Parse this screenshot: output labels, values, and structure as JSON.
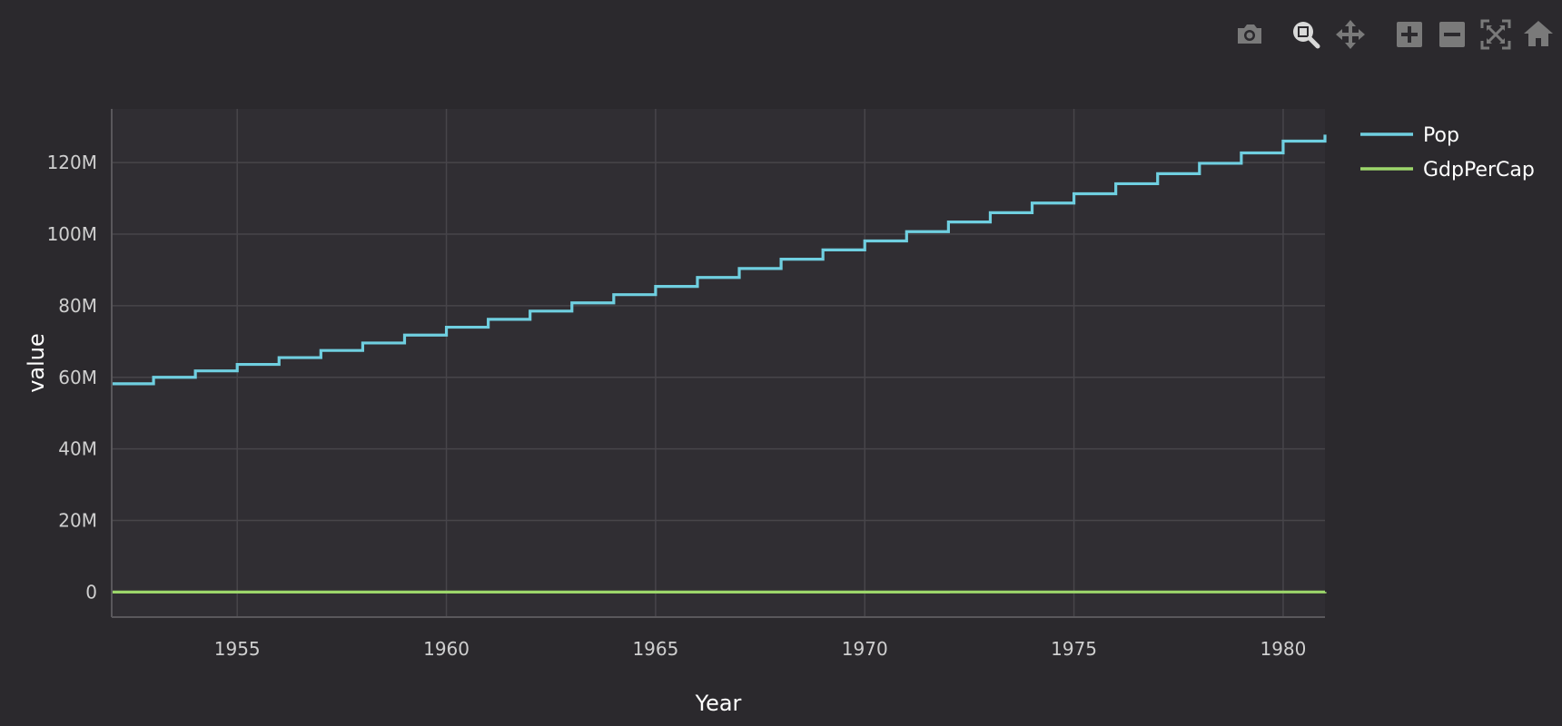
{
  "modebar": {
    "buttons": [
      {
        "icon": "camera-icon",
        "title": "Download plot as a png"
      },
      {
        "icon": "zoom-icon",
        "title": "Zoom"
      },
      {
        "icon": "pan-icon",
        "title": "Pan"
      },
      {
        "icon": "zoom-in-icon",
        "title": "Zoom in"
      },
      {
        "icon": "zoom-out-icon",
        "title": "Zoom out"
      },
      {
        "icon": "autoscale-icon",
        "title": "Autoscale"
      },
      {
        "icon": "reset-axes-icon",
        "title": "Reset axes"
      }
    ]
  },
  "colors": {
    "background": "#2b292d",
    "plot_background": "#302e33",
    "grid": "#47454a",
    "axis_line": "#5a585c",
    "tick_text": "#cfcfcf",
    "title_text": "#ffffff",
    "pop": "#6fcfe0",
    "gdp": "#9cd66b",
    "modebar_icon": "#7a7a7a",
    "modebar_active": "#d9d9d9"
  },
  "chart_data": {
    "type": "line",
    "line_shape": "step",
    "xlabel": "Year",
    "ylabel": "value",
    "xlim": [
      1952,
      1981
    ],
    "ylim": [
      -7000000,
      135000000
    ],
    "x_ticks": [
      1955,
      1960,
      1965,
      1970,
      1975,
      1980
    ],
    "y_ticks": [
      0,
      20000000,
      40000000,
      60000000,
      80000000,
      100000000,
      120000000
    ],
    "y_tick_labels": [
      "0",
      "20M",
      "40M",
      "60M",
      "80M",
      "100M",
      "120M"
    ],
    "grid": true,
    "legend_position": "top-right",
    "x": [
      1952,
      1953,
      1954,
      1955,
      1956,
      1957,
      1958,
      1959,
      1960,
      1961,
      1962,
      1963,
      1964,
      1965,
      1966,
      1967,
      1968,
      1969,
      1970,
      1971,
      1972,
      1973,
      1974,
      1975,
      1976,
      1977,
      1978,
      1979,
      1980,
      1981
    ],
    "series": [
      {
        "name": "Pop",
        "color": "#6fcfe0",
        "values": [
          58200000,
          60000000,
          61800000,
          63600000,
          65500000,
          67500000,
          69600000,
          71800000,
          74000000,
          76200000,
          78500000,
          80800000,
          83100000,
          85400000,
          87900000,
          90400000,
          93000000,
          95600000,
          98100000,
          100700000,
          103400000,
          106000000,
          108700000,
          111300000,
          114100000,
          116900000,
          119800000,
          122700000,
          126000000,
          127800000
        ]
      },
      {
        "name": "GdpPerCap",
        "color": "#9cd66b",
        "values": [
          3200,
          3400,
          3700,
          4000,
          4300,
          4700,
          5100,
          5600,
          6100,
          6600,
          7200,
          7800,
          8400,
          9000,
          9700,
          10400,
          11200,
          12000,
          12900,
          13800,
          14700,
          15700,
          16700,
          17600,
          18500,
          19400,
          20300,
          21200,
          22100,
          22800
        ]
      }
    ]
  }
}
